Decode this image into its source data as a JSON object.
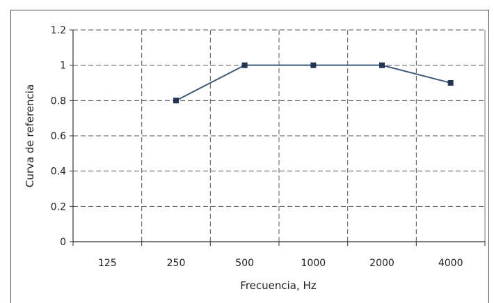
{
  "chart_data": {
    "type": "line",
    "categories": [
      "125",
      "250",
      "500",
      "1000",
      "2000",
      "4000"
    ],
    "series": [
      {
        "values": [
          null,
          0.8,
          1.0,
          1.0,
          1.0,
          0.9
        ]
      }
    ],
    "xlabel": "Frecuencia, Hz",
    "ylabel": "Curva de referencia",
    "ylim": [
      0,
      1.2
    ],
    "yticks": [
      "0",
      "0.2",
      "0.4",
      "0.6",
      "0.8",
      "1",
      "1.2"
    ],
    "grid": true,
    "line_color": "#3b5a80",
    "marker_color": "#1f3553"
  }
}
